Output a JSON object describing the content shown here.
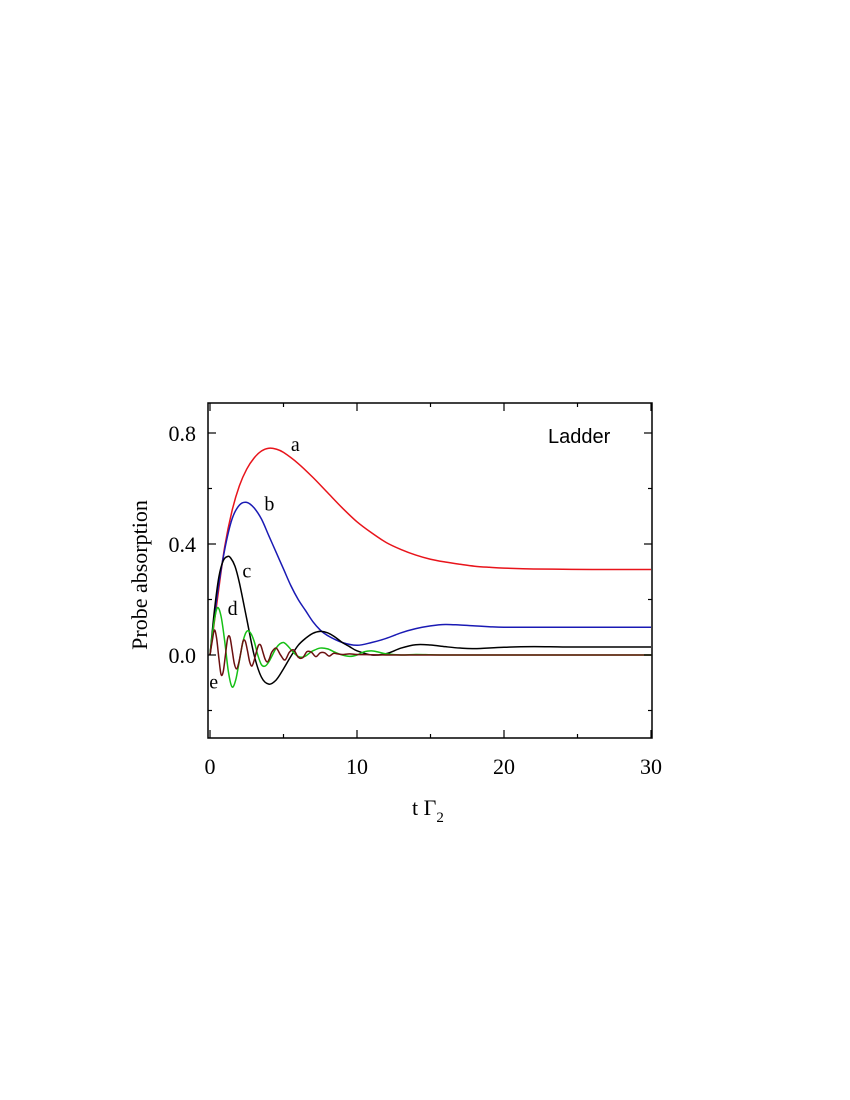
{
  "chart_data": {
    "type": "line",
    "xlabel_main": "t Γ",
    "xlabel_sub": "2",
    "ylabel": "Probe absorption",
    "annotation": "Ladder",
    "xlim": [
      0,
      30
    ],
    "ylim": [
      -0.3,
      0.9
    ],
    "x_ticks": [
      0,
      10,
      20,
      30
    ],
    "x_minor_ticks": [
      5,
      15,
      25
    ],
    "y_ticks": [
      0.0,
      0.4,
      0.8
    ],
    "y_minor_ticks": [
      -0.2,
      0.2,
      0.6
    ],
    "series": [
      {
        "label": "a",
        "color": "#e8141b",
        "x": [
          0,
          0.5,
          1,
          1.5,
          2,
          2.5,
          3,
          3.5,
          4,
          4.5,
          5,
          6,
          7,
          8,
          9,
          10,
          11,
          12,
          13,
          14,
          15,
          16,
          17,
          18,
          19,
          20,
          22,
          24,
          26,
          28,
          30
        ],
        "y": [
          0,
          0.2,
          0.39,
          0.52,
          0.61,
          0.67,
          0.71,
          0.735,
          0.745,
          0.742,
          0.73,
          0.69,
          0.64,
          0.585,
          0.53,
          0.48,
          0.44,
          0.405,
          0.38,
          0.36,
          0.345,
          0.335,
          0.327,
          0.32,
          0.316,
          0.313,
          0.31,
          0.309,
          0.308,
          0.308,
          0.308
        ]
      },
      {
        "label": "b",
        "color": "#1a1ab4",
        "x": [
          0,
          0.5,
          1,
          1.5,
          2,
          2.5,
          3,
          3.5,
          4,
          4.5,
          5,
          5.5,
          6,
          6.5,
          7,
          7.5,
          8,
          9,
          10,
          11,
          12,
          13,
          14,
          15,
          16,
          17,
          18,
          19,
          20,
          22,
          24,
          26,
          28,
          30
        ],
        "y": [
          0,
          0.22,
          0.38,
          0.49,
          0.54,
          0.55,
          0.53,
          0.49,
          0.43,
          0.37,
          0.31,
          0.25,
          0.2,
          0.16,
          0.12,
          0.09,
          0.07,
          0.045,
          0.035,
          0.045,
          0.06,
          0.08,
          0.095,
          0.105,
          0.11,
          0.108,
          0.105,
          0.102,
          0.1,
          0.1,
          0.1,
          0.1,
          0.1,
          0.1
        ]
      },
      {
        "label": "c",
        "color": "#000000",
        "x": [
          0,
          0.3,
          0.6,
          0.9,
          1.2,
          1.4,
          1.7,
          2.0,
          2.5,
          3,
          3.5,
          4,
          4.5,
          5,
          5.5,
          6,
          6.5,
          7,
          7.5,
          8,
          8.5,
          9,
          9.5,
          10,
          11,
          12,
          13,
          14,
          15,
          16,
          17,
          18,
          20,
          22,
          24,
          26,
          28,
          30
        ],
        "y": [
          0,
          0.16,
          0.28,
          0.34,
          0.355,
          0.35,
          0.32,
          0.26,
          0.13,
          0.0,
          -0.08,
          -0.105,
          -0.09,
          -0.05,
          -0.005,
          0.035,
          0.06,
          0.078,
          0.085,
          0.08,
          0.065,
          0.045,
          0.03,
          0.015,
          0.0,
          0.005,
          0.025,
          0.037,
          0.036,
          0.03,
          0.025,
          0.023,
          0.028,
          0.03,
          0.029,
          0.029,
          0.029,
          0.029
        ]
      },
      {
        "label": "d",
        "color": "#16c016",
        "x": [
          0,
          0.25,
          0.5,
          0.75,
          1.0,
          1.25,
          1.5,
          1.75,
          2.0,
          2.25,
          2.5,
          2.75,
          3.0,
          3.25,
          3.5,
          3.75,
          4.0,
          4.25,
          4.5,
          4.75,
          5.0,
          5.25,
          5.5,
          5.75,
          6.0,
          6.25,
          6.5,
          6.75,
          7.0,
          7.5,
          8.0,
          8.5,
          9.0,
          9.5,
          10,
          10.5,
          11,
          11.5,
          12,
          13,
          14,
          15,
          16,
          18,
          20,
          22,
          24,
          26,
          28,
          30
        ],
        "y": [
          0,
          0.11,
          0.17,
          0.14,
          0.05,
          -0.06,
          -0.115,
          -0.09,
          -0.02,
          0.05,
          0.085,
          0.08,
          0.05,
          0.0,
          -0.035,
          -0.04,
          -0.025,
          0.0,
          0.025,
          0.04,
          0.045,
          0.035,
          0.02,
          0.005,
          -0.005,
          -0.008,
          -0.004,
          0.006,
          0.015,
          0.025,
          0.022,
          0.01,
          0.0,
          -0.005,
          0.0,
          0.012,
          0.015,
          0.01,
          0.004,
          0.0,
          0.002,
          0.001,
          0.0,
          0.0,
          0.0,
          0.0,
          0.0,
          0.0,
          0.0,
          0.0
        ]
      },
      {
        "label": "e",
        "color": "#6b1010",
        "x": [
          0,
          0.15,
          0.3,
          0.45,
          0.6,
          0.75,
          0.9,
          1.05,
          1.2,
          1.35,
          1.5,
          1.65,
          1.8,
          1.95,
          2.1,
          2.25,
          2.4,
          2.55,
          2.7,
          2.85,
          3.0,
          3.15,
          3.3,
          3.45,
          3.6,
          3.75,
          3.9,
          4.05,
          4.2,
          4.5,
          4.8,
          5.1,
          5.4,
          5.7,
          6.0,
          6.3,
          6.6,
          6.9,
          7.2,
          7.5,
          7.8,
          8.1,
          8.4,
          8.7,
          9.0,
          9.5,
          10,
          11,
          12,
          14,
          16,
          18,
          20,
          22,
          24,
          26,
          28,
          30
        ],
        "y": [
          0,
          0.05,
          0.09,
          0.06,
          -0.01,
          -0.07,
          -0.06,
          0.0,
          0.06,
          0.065,
          0.02,
          -0.03,
          -0.05,
          -0.03,
          0.01,
          0.05,
          0.05,
          0.015,
          -0.025,
          -0.04,
          -0.02,
          0.01,
          0.035,
          0.035,
          0.01,
          -0.015,
          -0.025,
          -0.012,
          0.01,
          0.025,
          0.0,
          -0.018,
          0.01,
          0.018,
          -0.008,
          -0.01,
          0.012,
          0.01,
          -0.006,
          0.008,
          0.008,
          -0.004,
          0.006,
          0.004,
          0.002,
          0.004,
          0.002,
          0.001,
          0.0,
          0.0,
          0.0,
          0.0,
          0.0,
          0.0,
          0.0,
          0.0,
          0.0,
          0.0
        ]
      }
    ],
    "label_anchors": {
      "a": [
        5.5,
        0.735
      ],
      "b": [
        3.7,
        0.52
      ],
      "c": [
        2.2,
        0.28
      ],
      "d": [
        1.2,
        0.145
      ],
      "e": [
        -0.05,
        -0.12
      ]
    }
  }
}
